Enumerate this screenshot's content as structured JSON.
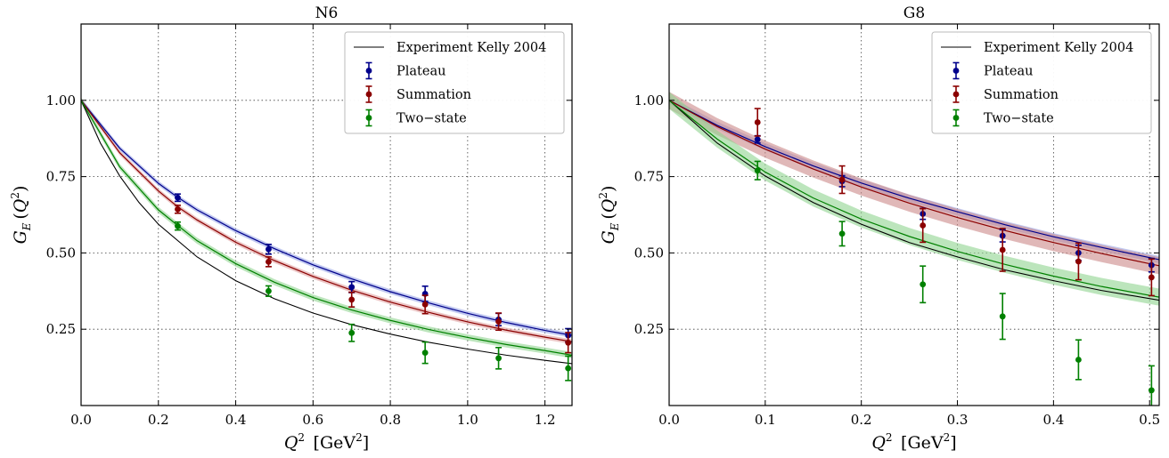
{
  "chart_data": [
    {
      "type": "scatter",
      "title": "N6",
      "xlabel": "Q^2 [GeV^2]",
      "ylabel": "G_E(Q^2)",
      "xlim": [
        0,
        1.27
      ],
      "ylim": [
        0,
        1.25
      ],
      "xticks": [
        0.0,
        0.2,
        0.4,
        0.6,
        0.8,
        1.0,
        1.2
      ],
      "xtick_labels": [
        "0.0",
        "0.2",
        "0.4",
        "0.6",
        "0.8",
        "1.0",
        "1.2"
      ],
      "yticks": [
        0.25,
        0.5,
        0.75,
        1.0
      ],
      "ytick_labels": [
        "0.25",
        "0.50",
        "0.75",
        "1.00"
      ],
      "grid": true,
      "legend_position": "top-right",
      "experiment": {
        "name": "Experiment Kelly 2004",
        "color": "#000000",
        "x": [
          0,
          0.05,
          0.1,
          0.15,
          0.2,
          0.3,
          0.4,
          0.5,
          0.6,
          0.7,
          0.8,
          0.9,
          1.0,
          1.1,
          1.2,
          1.27
        ],
        "y": [
          1.0,
          0.86,
          0.752,
          0.665,
          0.594,
          0.487,
          0.409,
          0.35,
          0.303,
          0.265,
          0.234,
          0.207,
          0.185,
          0.165,
          0.148,
          0.137
        ]
      },
      "series": [
        {
          "name": "Plateau",
          "color": "#00008b",
          "band_color": "#9aa5e6",
          "band_width": 0.008,
          "curve_x": [
            0,
            0.1,
            0.2,
            0.25,
            0.3,
            0.4,
            0.5,
            0.6,
            0.7,
            0.8,
            0.9,
            1.0,
            1.1,
            1.2,
            1.27
          ],
          "curve_y": [
            1.0,
            0.843,
            0.728,
            0.682,
            0.641,
            0.573,
            0.514,
            0.461,
            0.415,
            0.373,
            0.336,
            0.302,
            0.272,
            0.246,
            0.23
          ],
          "points": [
            {
              "x": 0.25,
              "y": 0.681,
              "err": 0.012
            },
            {
              "x": 0.485,
              "y": 0.512,
              "err": 0.016
            },
            {
              "x": 0.7,
              "y": 0.388,
              "err": 0.018
            },
            {
              "x": 0.89,
              "y": 0.366,
              "err": 0.025
            },
            {
              "x": 1.08,
              "y": 0.282,
              "err": 0.02
            },
            {
              "x": 1.26,
              "y": 0.23,
              "err": 0.022
            }
          ]
        },
        {
          "name": "Summation",
          "color": "#8b0000",
          "band_color": "#e0a0a0",
          "band_width": 0.008,
          "curve_x": [
            0,
            0.1,
            0.2,
            0.25,
            0.3,
            0.4,
            0.5,
            0.6,
            0.7,
            0.8,
            0.9,
            1.0,
            1.1,
            1.2,
            1.27
          ],
          "curve_y": [
            1.0,
            0.828,
            0.703,
            0.651,
            0.608,
            0.535,
            0.475,
            0.423,
            0.378,
            0.339,
            0.305,
            0.274,
            0.247,
            0.224,
            0.209
          ],
          "points": [
            {
              "x": 0.25,
              "y": 0.643,
              "err": 0.013
            },
            {
              "x": 0.485,
              "y": 0.471,
              "err": 0.016
            },
            {
              "x": 0.7,
              "y": 0.347,
              "err": 0.024
            },
            {
              "x": 0.89,
              "y": 0.331,
              "err": 0.03
            },
            {
              "x": 1.08,
              "y": 0.275,
              "err": 0.028
            },
            {
              "x": 1.26,
              "y": 0.206,
              "err": 0.033
            }
          ]
        },
        {
          "name": "Two−state",
          "color": "#008000",
          "band_color": "#8fd48f",
          "band_width": 0.01,
          "curve_x": [
            0,
            0.1,
            0.2,
            0.25,
            0.3,
            0.4,
            0.5,
            0.6,
            0.7,
            0.8,
            0.9,
            1.0,
            1.1,
            1.2,
            1.27
          ],
          "curve_y": [
            1.0,
            0.782,
            0.641,
            0.59,
            0.54,
            0.465,
            0.404,
            0.354,
            0.313,
            0.279,
            0.249,
            0.223,
            0.2,
            0.18,
            0.165
          ],
          "points": [
            {
              "x": 0.25,
              "y": 0.588,
              "err": 0.013
            },
            {
              "x": 0.485,
              "y": 0.375,
              "err": 0.017
            },
            {
              "x": 0.7,
              "y": 0.238,
              "err": 0.028
            },
            {
              "x": 0.89,
              "y": 0.173,
              "err": 0.035
            },
            {
              "x": 1.08,
              "y": 0.155,
              "err": 0.035
            },
            {
              "x": 1.26,
              "y": 0.122,
              "err": 0.04
            }
          ]
        }
      ]
    },
    {
      "type": "scatter",
      "title": "G8",
      "xlabel": "Q^2 [GeV^2]",
      "ylabel": "G_E(Q^2)",
      "xlim": [
        0,
        0.51
      ],
      "ylim": [
        0,
        1.25
      ],
      "xticks": [
        0.0,
        0.1,
        0.2,
        0.3,
        0.4,
        0.5
      ],
      "xtick_labels": [
        "0.0",
        "0.1",
        "0.2",
        "0.3",
        "0.4",
        "0.5"
      ],
      "yticks": [
        0.25,
        0.5,
        0.75,
        1.0
      ],
      "ytick_labels": [
        "0.25",
        "0.50",
        "0.75",
        "1.00"
      ],
      "grid": true,
      "legend_position": "top-right",
      "experiment": {
        "name": "Experiment Kelly 2004",
        "color": "#000000",
        "x": [
          0,
          0.05,
          0.1,
          0.15,
          0.2,
          0.25,
          0.3,
          0.35,
          0.4,
          0.45,
          0.51
        ],
        "y": [
          1.0,
          0.86,
          0.752,
          0.665,
          0.594,
          0.534,
          0.487,
          0.444,
          0.409,
          0.377,
          0.345
        ]
      },
      "series": [
        {
          "name": "Plateau",
          "color": "#00008b",
          "band_color": "#9aa5e6",
          "band_width": 0.012,
          "curve_x": [
            0,
            0.05,
            0.1,
            0.15,
            0.2,
            0.25,
            0.3,
            0.35,
            0.4,
            0.45,
            0.51
          ],
          "curve_y": [
            1.0,
            0.918,
            0.848,
            0.785,
            0.729,
            0.679,
            0.635,
            0.592,
            0.553,
            0.518,
            0.478
          ],
          "points": [
            {
              "x": 0.092,
              "y": 0.872,
              "err": 0.012
            },
            {
              "x": 0.18,
              "y": 0.735,
              "err": 0.018
            },
            {
              "x": 0.264,
              "y": 0.628,
              "err": 0.018
            },
            {
              "x": 0.347,
              "y": 0.556,
              "err": 0.02
            },
            {
              "x": 0.426,
              "y": 0.5,
              "err": 0.025
            },
            {
              "x": 0.502,
              "y": 0.46,
              "err": 0.022
            }
          ]
        },
        {
          "name": "Summation",
          "color": "#8b0000",
          "band_color": "#cc8888",
          "band_width": 0.028,
          "curve_x": [
            0,
            0.05,
            0.1,
            0.15,
            0.2,
            0.25,
            0.3,
            0.35,
            0.4,
            0.45,
            0.51
          ],
          "curve_y": [
            1.0,
            0.914,
            0.84,
            0.775,
            0.716,
            0.663,
            0.616,
            0.573,
            0.534,
            0.498,
            0.458
          ],
          "points": [
            {
              "x": 0.092,
              "y": 0.928,
              "err": 0.045
            },
            {
              "x": 0.18,
              "y": 0.74,
              "err": 0.045
            },
            {
              "x": 0.264,
              "y": 0.59,
              "err": 0.055
            },
            {
              "x": 0.347,
              "y": 0.51,
              "err": 0.07
            },
            {
              "x": 0.426,
              "y": 0.472,
              "err": 0.06
            },
            {
              "x": 0.502,
              "y": 0.42,
              "err": 0.06
            }
          ]
        },
        {
          "name": "Two−state",
          "color": "#008000",
          "band_color": "#8fd48f",
          "band_width": 0.028,
          "curve_x": [
            0,
            0.05,
            0.1,
            0.15,
            0.2,
            0.25,
            0.3,
            0.35,
            0.4,
            0.45,
            0.51
          ],
          "curve_y": [
            1.0,
            0.873,
            0.765,
            0.68,
            0.611,
            0.554,
            0.505,
            0.462,
            0.424,
            0.39,
            0.355
          ],
          "points": [
            {
              "x": 0.092,
              "y": 0.77,
              "err": 0.03
            },
            {
              "x": 0.18,
              "y": 0.563,
              "err": 0.04
            },
            {
              "x": 0.264,
              "y": 0.397,
              "err": 0.06
            },
            {
              "x": 0.347,
              "y": 0.292,
              "err": 0.075
            },
            {
              "x": 0.426,
              "y": 0.15,
              "err": 0.065
            },
            {
              "x": 0.502,
              "y": 0.05,
              "err": 0.08
            }
          ]
        }
      ]
    }
  ]
}
